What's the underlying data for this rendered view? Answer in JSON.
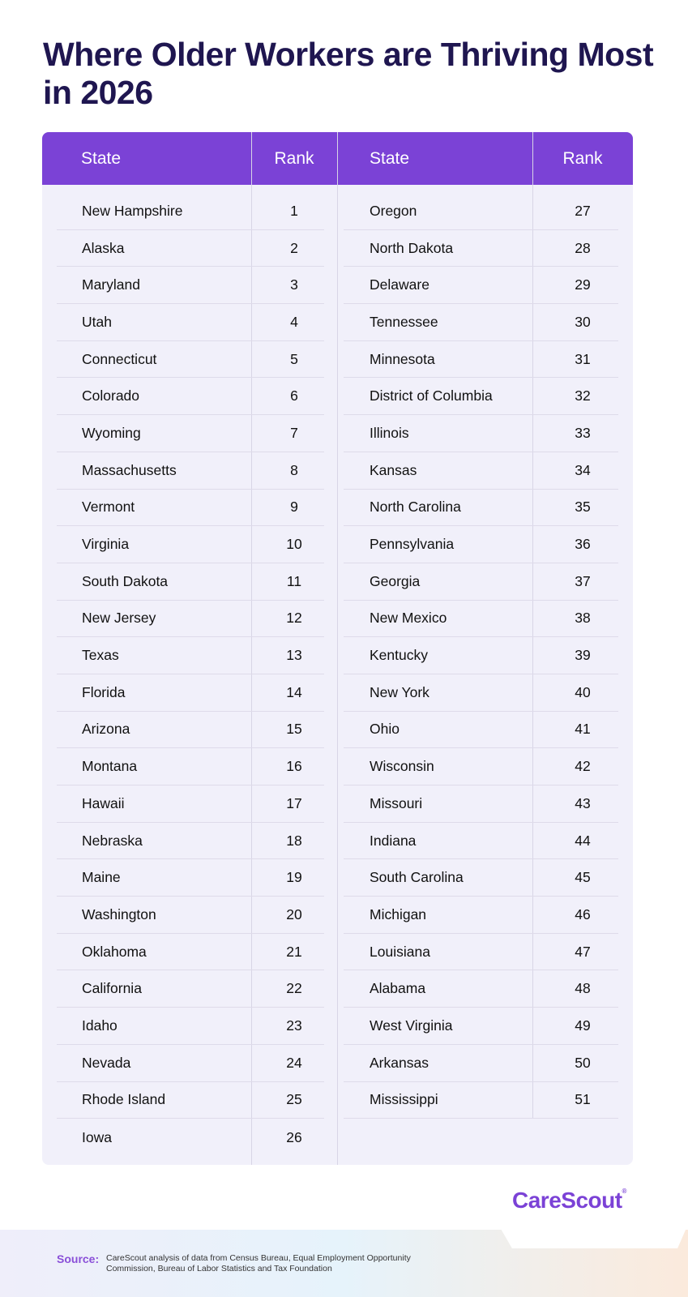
{
  "title": "Where Older Workers are Thriving Most in 2026",
  "table": {
    "headers": [
      "State",
      "Rank",
      "State",
      "Rank"
    ],
    "left": [
      [
        "New Hampshire",
        "1"
      ],
      [
        "Alaska",
        "2"
      ],
      [
        "Maryland",
        "3"
      ],
      [
        "Utah",
        "4"
      ],
      [
        "Connecticut",
        "5"
      ],
      [
        "Colorado",
        "6"
      ],
      [
        "Wyoming",
        "7"
      ],
      [
        "Massachusetts",
        "8"
      ],
      [
        "Vermont",
        "9"
      ],
      [
        "Virginia",
        "10"
      ],
      [
        "South Dakota",
        "11"
      ],
      [
        "New Jersey",
        "12"
      ],
      [
        "Texas",
        "13"
      ],
      [
        "Florida",
        "14"
      ],
      [
        "Arizona",
        "15"
      ],
      [
        "Montana",
        "16"
      ],
      [
        "Hawaii",
        "17"
      ],
      [
        "Nebraska",
        "18"
      ],
      [
        "Maine",
        "19"
      ],
      [
        "Washington",
        "20"
      ],
      [
        "Oklahoma",
        "21"
      ],
      [
        "California",
        "22"
      ],
      [
        "Idaho",
        "23"
      ],
      [
        "Nevada",
        "24"
      ],
      [
        "Rhode Island",
        "25"
      ],
      [
        "Iowa",
        "26"
      ]
    ],
    "right": [
      [
        "Oregon",
        "27"
      ],
      [
        "North Dakota",
        "28"
      ],
      [
        "Delaware",
        "29"
      ],
      [
        "Tennessee",
        "30"
      ],
      [
        "Minnesota",
        "31"
      ],
      [
        "District of Columbia",
        "32"
      ],
      [
        "Illinois",
        "33"
      ],
      [
        "Kansas",
        "34"
      ],
      [
        "North Carolina",
        "35"
      ],
      [
        "Pennsylvania",
        "36"
      ],
      [
        "Georgia",
        "37"
      ],
      [
        "New Mexico",
        "38"
      ],
      [
        "Kentucky",
        "39"
      ],
      [
        "New York",
        "40"
      ],
      [
        "Ohio",
        "41"
      ],
      [
        "Wisconsin",
        "42"
      ],
      [
        "Missouri",
        "43"
      ],
      [
        "Indiana",
        "44"
      ],
      [
        "South Carolina",
        "45"
      ],
      [
        "Michigan",
        "46"
      ],
      [
        "Louisiana",
        "47"
      ],
      [
        "Alabama",
        "48"
      ],
      [
        "West Virginia",
        "49"
      ],
      [
        "Arkansas",
        "50"
      ],
      [
        "Mississippi",
        "51"
      ]
    ]
  },
  "footer": {
    "source_label": "Source:",
    "source_text": "CareScout analysis of data from Census Bureau, Equal Employment Opportunity Commission, Bureau of Labor Statistics and Tax Foundation",
    "logo": "CareScout",
    "logo_mark": "®"
  },
  "colors": {
    "header": "#7b42d6",
    "title": "#1f1650",
    "table_bg": "#f1f0fa"
  }
}
